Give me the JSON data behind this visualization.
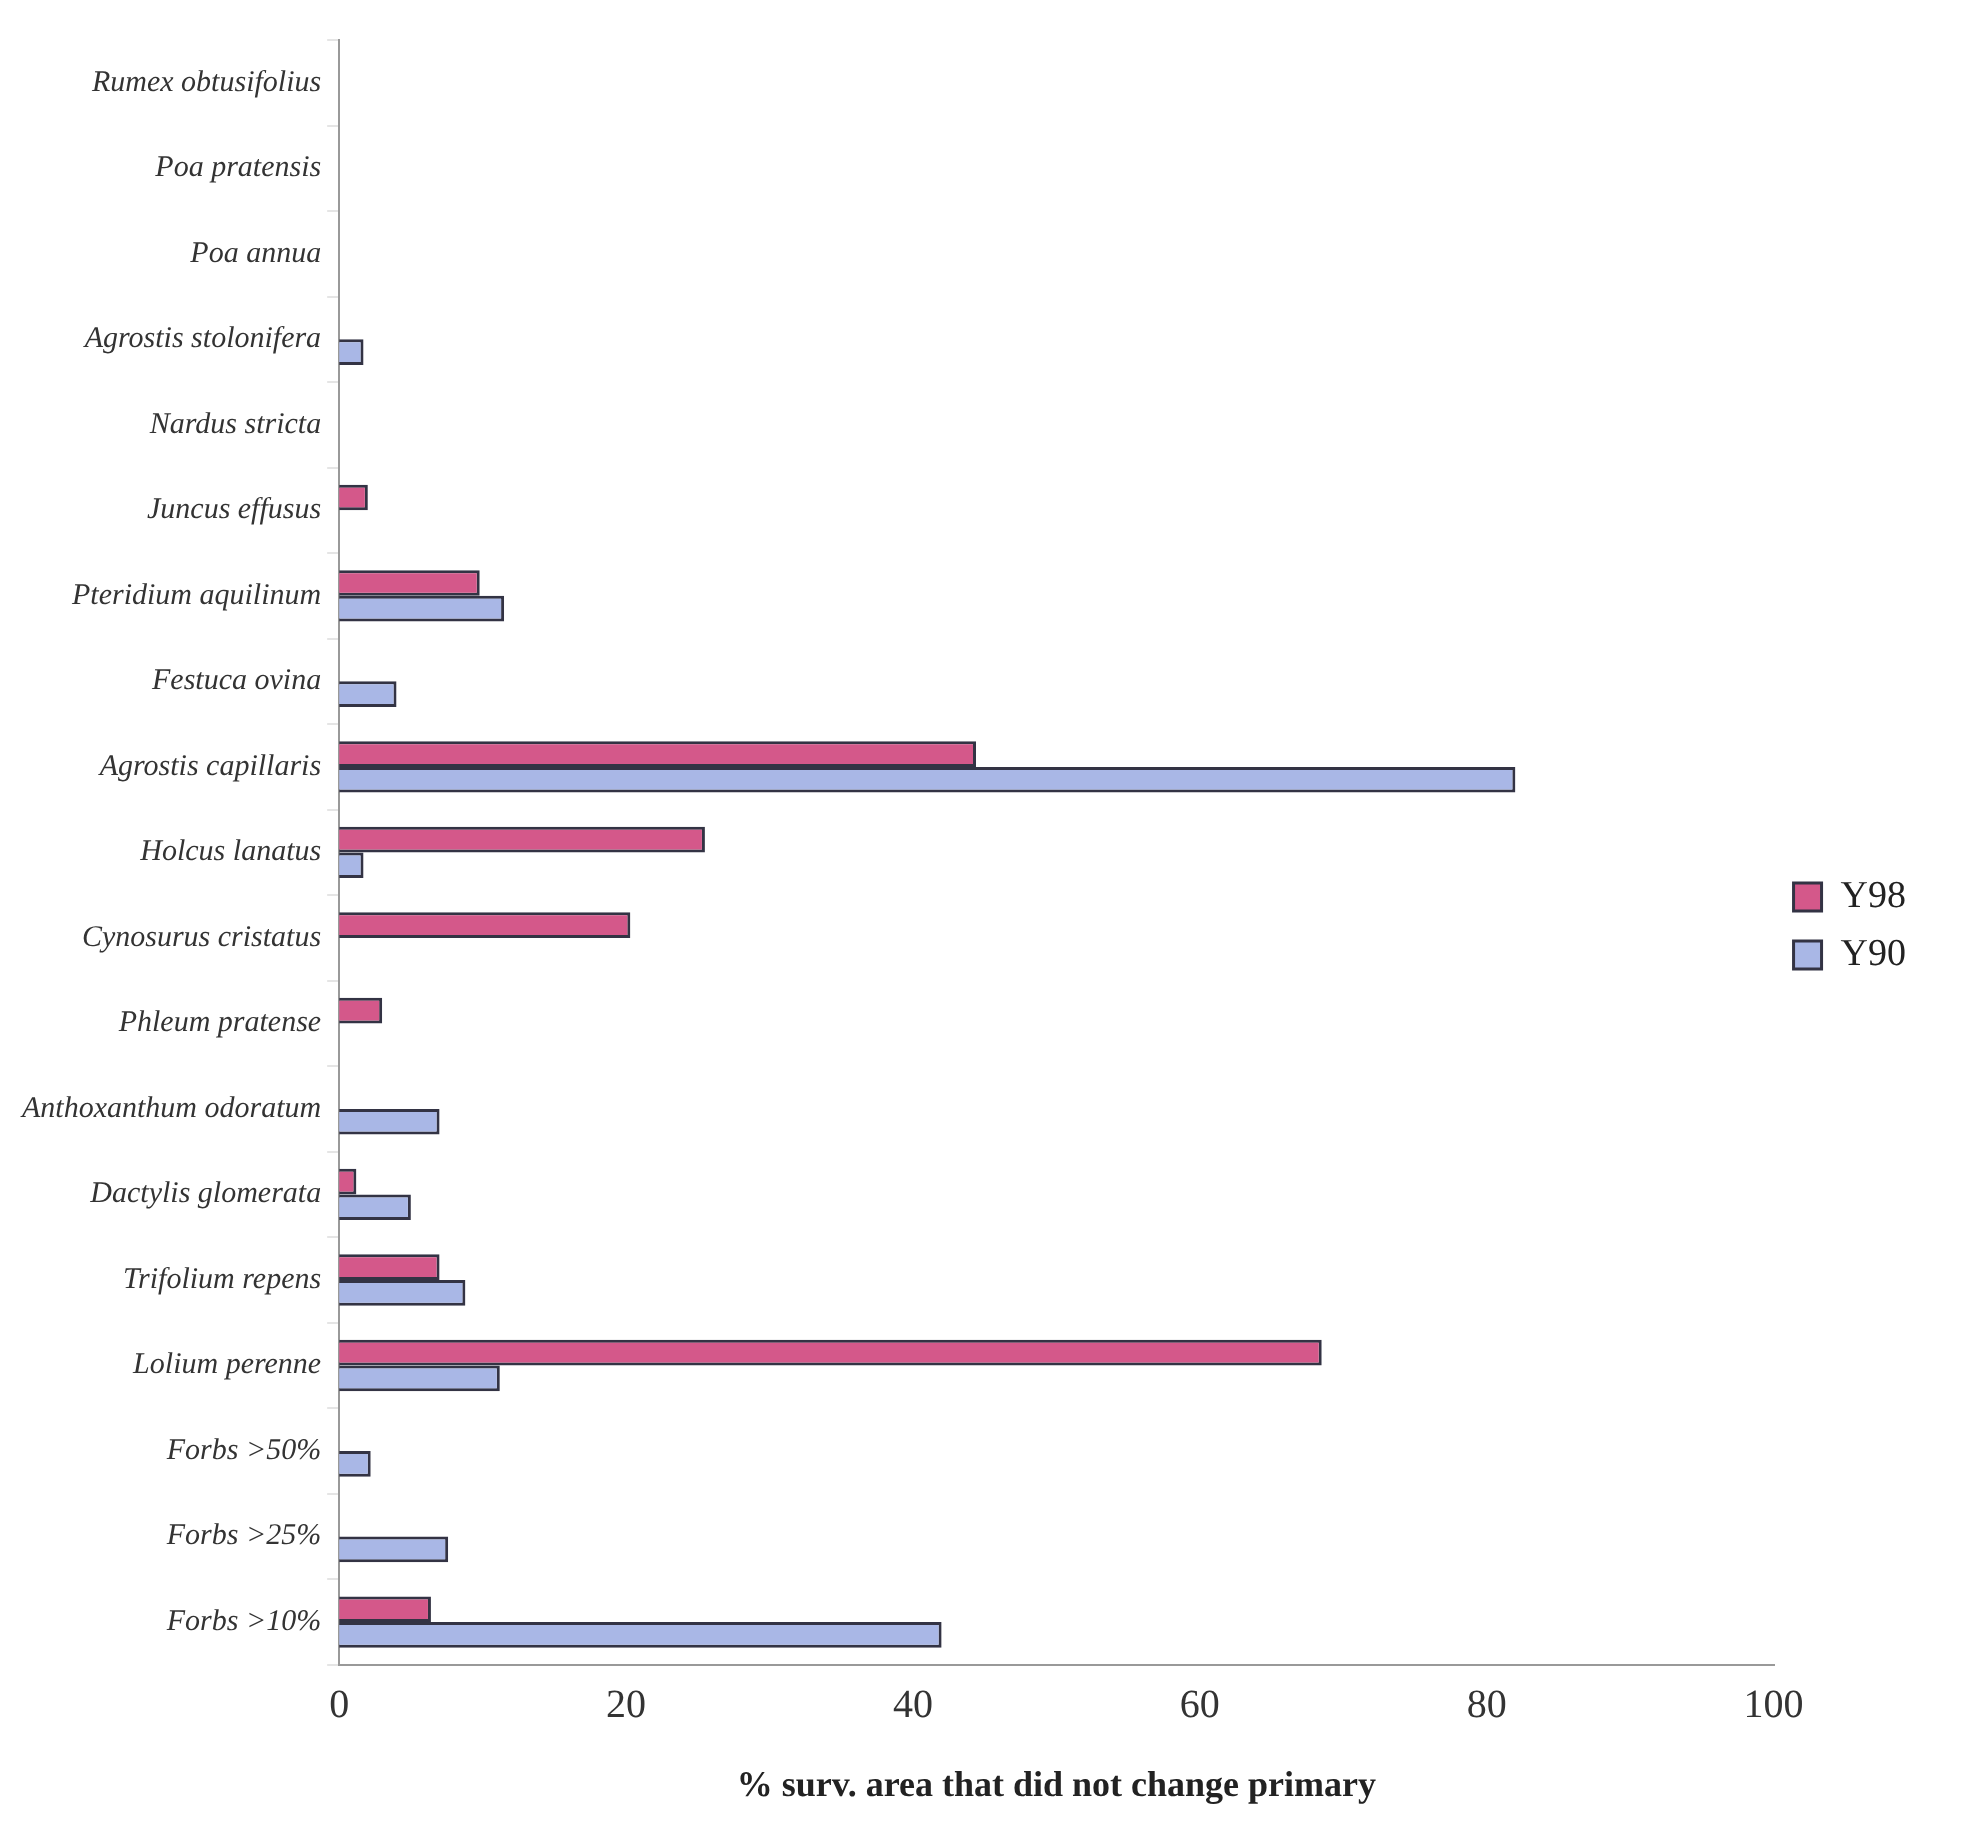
{
  "chart_data": {
    "type": "bar",
    "orientation": "horizontal",
    "categories": [
      "Rumex obtusifolius",
      "Poa pratensis",
      "Poa annua",
      "Agrostis stolonifera",
      "Nardus stricta",
      "Juncus effusus",
      "Pteridium aquilinum",
      "Festuca ovina",
      "Agrostis capillaris",
      "Holcus lanatus",
      "Cynosurus cristatus",
      "Phleum pratense",
      "Anthoxanthum odoratum",
      "Dactylis glomerata",
      "Trifolium repens",
      "Lolium perenne",
      "Forbs >50%",
      "Forbs >25%",
      "Forbs >10%"
    ],
    "series": [
      {
        "name": "Y98",
        "color": "#d4588a",
        "values": [
          null,
          null,
          null,
          null,
          null,
          2,
          9.8,
          null,
          44.4,
          25.5,
          20.3,
          3,
          null,
          1.2,
          7,
          68.5,
          null,
          null,
          6.4
        ]
      },
      {
        "name": "Y90",
        "color": "#a9b7e6",
        "values": [
          null,
          null,
          null,
          1.7,
          null,
          null,
          11.5,
          4,
          82,
          1.7,
          null,
          null,
          7,
          5,
          8.8,
          11.2,
          2.2,
          7.6,
          42
        ]
      }
    ],
    "xlim": [
      0,
      100
    ],
    "xticks": [
      0,
      20,
      40,
      60,
      80,
      100
    ],
    "xlabel": "% surv. area that did not change primary",
    "grid": false,
    "legend": "right"
  }
}
